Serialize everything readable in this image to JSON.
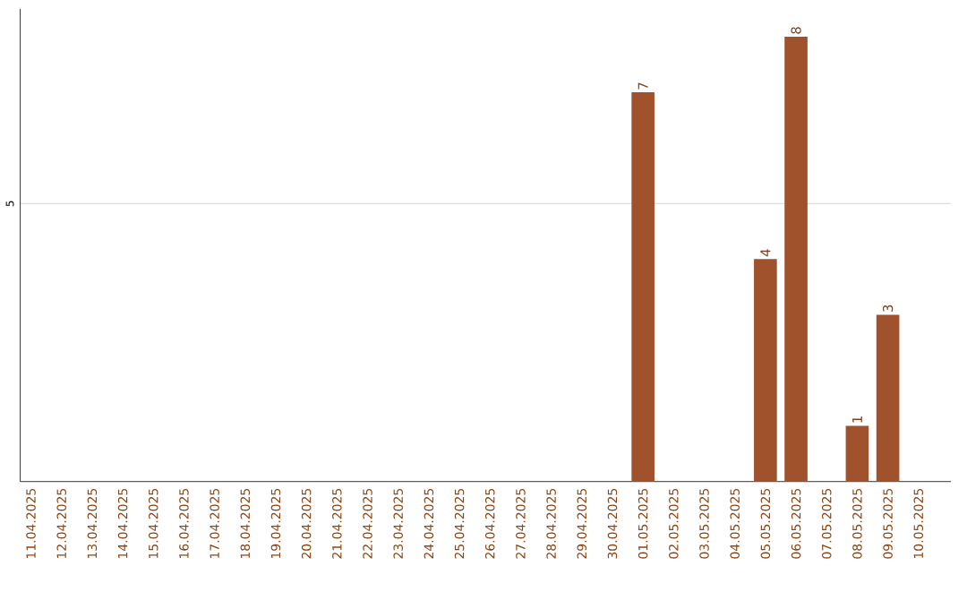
{
  "chart_data": {
    "type": "bar",
    "categories": [
      "11.04.2025",
      "12.04.2025",
      "13.04.2025",
      "14.04.2025",
      "15.04.2025",
      "16.04.2025",
      "17.04.2025",
      "18.04.2025",
      "19.04.2025",
      "20.04.2025",
      "21.04.2025",
      "22.04.2025",
      "23.04.2025",
      "24.04.2025",
      "25.04.2025",
      "26.04.2025",
      "27.04.2025",
      "28.04.2025",
      "29.04.2025",
      "30.04.2025",
      "01.05.2025",
      "02.05.2025",
      "03.05.2025",
      "04.05.2025",
      "05.05.2025",
      "06.05.2025",
      "07.05.2025",
      "08.05.2025",
      "09.05.2025",
      "10.05.2025"
    ],
    "values": [
      null,
      null,
      null,
      null,
      null,
      null,
      null,
      null,
      null,
      null,
      null,
      null,
      null,
      null,
      null,
      null,
      null,
      null,
      null,
      null,
      7,
      null,
      null,
      null,
      4,
      8,
      null,
      1,
      3,
      null
    ],
    "data_labels": true,
    "color": "#a0522d",
    "ylim": [
      0,
      8.5
    ],
    "yticks": [
      5
    ],
    "grid": "y"
  }
}
